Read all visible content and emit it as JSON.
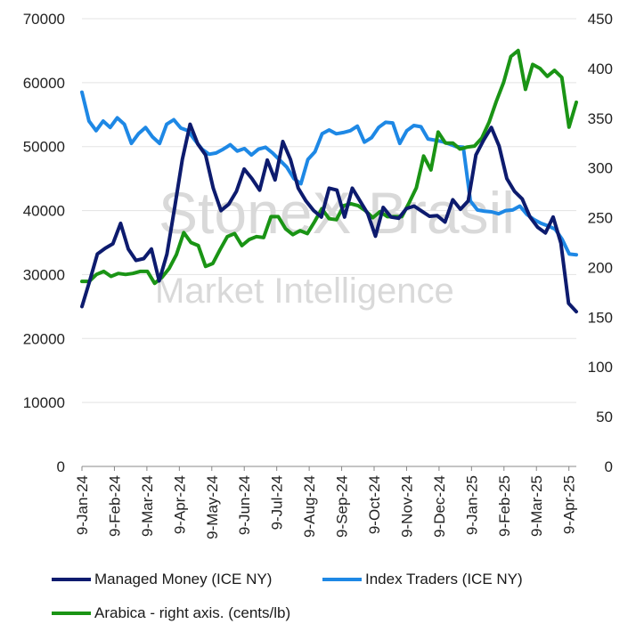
{
  "watermark": {
    "brand": "StoneX Brasil",
    "tag": "Market Intelligence"
  },
  "legend": [
    {
      "label": "Managed Money (ICE NY)",
      "color": "#0d1b6e"
    },
    {
      "label": "Index Traders (ICE NY)",
      "color": "#1e88e5"
    },
    {
      "label": "Arabica - right axis. (cents/lb)",
      "color": "#1a9415"
    }
  ],
  "chart_data": {
    "type": "line",
    "title": "",
    "x_labels": [
      "9-Jan-24",
      "9-Feb-24",
      "9-Mar-24",
      "9-Apr-24",
      "9-May-24",
      "9-Jun-24",
      "9-Jul-24",
      "9-Aug-24",
      "9-Sep-24",
      "9-Oct-24",
      "9-Nov-24",
      "9-Dec-24",
      "9-Jan-25",
      "9-Feb-25",
      "9-Mar-25",
      "9-Apr-25"
    ],
    "y_left": {
      "min": 0,
      "max": 70000,
      "ticks": [
        0,
        10000,
        20000,
        30000,
        40000,
        50000,
        60000,
        70000
      ]
    },
    "y_right": {
      "min": 0,
      "max": 450,
      "ticks": [
        0,
        50,
        100,
        150,
        200,
        250,
        300,
        350,
        400,
        450
      ]
    },
    "grid": true,
    "series": [
      {
        "name": "Managed Money (ICE NY)",
        "axis": "left",
        "color": "#0d1b6e",
        "values": [
          25000,
          29000,
          33200,
          34100,
          34800,
          38000,
          34000,
          32200,
          32500,
          34000,
          29000,
          33200,
          40500,
          48000,
          53500,
          50400,
          48700,
          43500,
          40000,
          41000,
          43000,
          46500,
          45000,
          43200,
          47900,
          44800,
          50800,
          48000,
          43500,
          41500,
          40000,
          39000,
          43500,
          43200,
          39000,
          43500,
          41500,
          39500,
          36000,
          40500,
          39000,
          38800,
          40300,
          40700,
          39900,
          39100,
          39200,
          38200,
          41700,
          40200,
          41500,
          48700,
          51000,
          53000,
          50100,
          45000,
          43000,
          41800,
          39000,
          37400,
          36500,
          39000,
          34900,
          25500,
          24200
        ]
      },
      {
        "name": "Index Traders (ICE NY)",
        "axis": "left",
        "color": "#1e88e5",
        "values": [
          58500,
          54000,
          52500,
          54000,
          53000,
          54500,
          53500,
          50500,
          52000,
          53000,
          51500,
          50500,
          53500,
          54200,
          52900,
          52500,
          51000,
          49600,
          48800,
          49000,
          49600,
          50300,
          49300,
          49700,
          48700,
          49600,
          49900,
          49000,
          47900,
          46800,
          45000,
          44200,
          48000,
          49200,
          52000,
          52600,
          52000,
          52200,
          52500,
          53200,
          50700,
          51400,
          53000,
          53800,
          53700,
          50500,
          52500,
          53300,
          53100,
          51200,
          51000,
          50800,
          50400,
          50000,
          49900,
          41500,
          40100,
          39900,
          39800,
          39500,
          40000,
          40100,
          40700,
          39400,
          38600,
          38000,
          37600,
          37100,
          35500,
          33200,
          33100
        ]
      },
      {
        "name": "Arabica - right axis. (cents/lb)",
        "axis": "right",
        "color": "#1a9415",
        "values": [
          186,
          186,
          193,
          196,
          191,
          194,
          193,
          194,
          196,
          196,
          184,
          190,
          199,
          213,
          235,
          225,
          222,
          201,
          204,
          218,
          231,
          234,
          222,
          228,
          231,
          230,
          251,
          251,
          239,
          233,
          237,
          234,
          246,
          259,
          249,
          248,
          262,
          264,
          262,
          257,
          250,
          256,
          251,
          251,
          251,
          265,
          280,
          312,
          298,
          336,
          325,
          325,
          319,
          321,
          322,
          330,
          346,
          367,
          386,
          412,
          418,
          379,
          404,
          400,
          392,
          398,
          391,
          341,
          366
        ]
      }
    ]
  }
}
